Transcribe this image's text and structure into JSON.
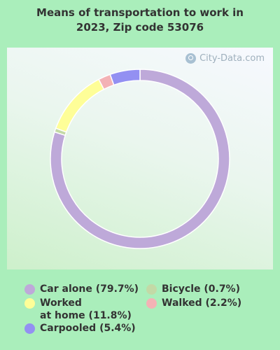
{
  "title_lines": [
    "Means of transportation to work in",
    "2023, Zip code 53076"
  ],
  "watermark": "City-Data.com",
  "chart_data": {
    "type": "pie",
    "style": "donut",
    "start_angle_deg": 0,
    "direction": "clockwise",
    "slices": [
      {
        "label": "Car alone (79.7%)",
        "value": 79.7,
        "color": "#bea9d9"
      },
      {
        "label": "Bicycle (0.7%)",
        "value": 0.7,
        "color": "#c3d9a6"
      },
      {
        "label": "Worked\nat home (11.8%)",
        "value": 11.8,
        "color": "#fefe98"
      },
      {
        "label": "Walked (2.2%)",
        "value": 2.2,
        "color": "#f3b2b5"
      },
      {
        "label": "Carpooled (5.4%)",
        "value": 5.4,
        "color": "#9390f2"
      }
    ]
  },
  "legend": {
    "left_column": [
      {
        "lines": [
          "Car alone (79.7%)"
        ],
        "color": "#bea9d9"
      },
      {
        "lines": [
          "Worked",
          "at home (11.8%)"
        ],
        "color": "#fefe98"
      },
      {
        "lines": [
          "Carpooled (5.4%)"
        ],
        "color": "#9390f2"
      }
    ],
    "right_column": [
      {
        "lines": [
          "Bicycle (0.7%)"
        ],
        "color": "#c3d9a6"
      },
      {
        "lines": [
          "Walked (2.2%)"
        ],
        "color": "#f3b2b5"
      }
    ]
  }
}
